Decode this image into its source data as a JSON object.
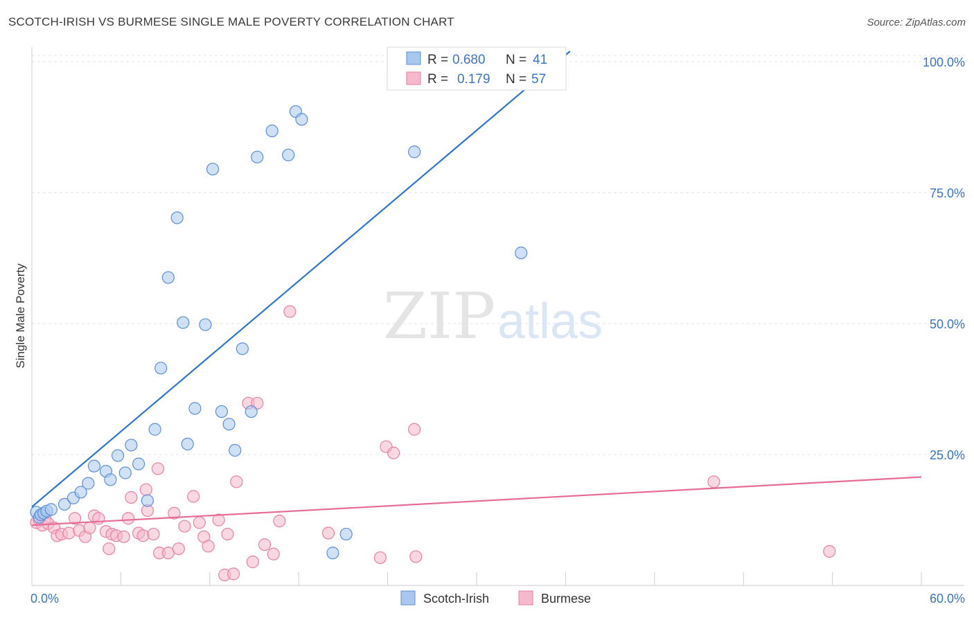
{
  "header": {
    "title": "SCOTCH-IRISH VS BURMESE SINGLE MALE POVERTY CORRELATION CHART",
    "source": "Source: ZipAtlas.com"
  },
  "watermark": {
    "zip": "ZIP",
    "atlas": "atlas"
  },
  "colors": {
    "blue_fill": "#a9c8ef",
    "blue_stroke": "#5b8fd6",
    "blue_line": "#2f74d0",
    "pink_fill": "#f6b8cb",
    "pink_stroke": "#e582a4",
    "pink_line": "#e66b97",
    "grid": "#dde1e8",
    "axis_text": "#3b73c5"
  },
  "legend": {
    "rows": [
      {
        "r_label": "R =",
        "r_value": "0.680",
        "n_label": "N =",
        "n_value": "41",
        "series": "scotch_irish"
      },
      {
        "r_label": "R =",
        "r_value": "0.179",
        "n_label": "N =",
        "n_value": "57",
        "series": "burmese"
      }
    ]
  },
  "chart_data": {
    "type": "scatter",
    "title": "SCOTCH-IRISH VS BURMESE SINGLE MALE POVERTY CORRELATION CHART",
    "xlabel": "",
    "ylabel": "Single Male Poverty",
    "xlim": [
      0,
      60
    ],
    "ylim": [
      0,
      102
    ],
    "x_tick_labels": [
      "0.0%",
      "60.0%"
    ],
    "y_ticks": [
      {
        "value": 25,
        "label": "25.0%"
      },
      {
        "value": 50,
        "label": "50.0%"
      },
      {
        "value": 75,
        "label": "75.0%"
      },
      {
        "value": 100,
        "label": "100.0%"
      }
    ],
    "grid": true,
    "legend_position": "top-center",
    "series": [
      {
        "name": "Scotch-Irish",
        "color": "#a9c8ef",
        "trend": {
          "x": [
            0,
            36.3
          ],
          "y": [
            15.0,
            102.0
          ]
        },
        "points": [
          [
            0.3,
            14.0
          ],
          [
            0.5,
            13.0
          ],
          [
            0.6,
            13.5
          ],
          [
            0.8,
            13.8
          ],
          [
            1.0,
            14.2
          ],
          [
            1.3,
            14.5
          ],
          [
            2.2,
            15.5
          ],
          [
            2.8,
            16.7
          ],
          [
            3.3,
            17.8
          ],
          [
            3.8,
            19.5
          ],
          [
            4.2,
            22.8
          ],
          [
            5.0,
            21.8
          ],
          [
            5.3,
            20.2
          ],
          [
            5.8,
            24.8
          ],
          [
            6.3,
            21.5
          ],
          [
            6.7,
            26.8
          ],
          [
            7.2,
            23.2
          ],
          [
            7.8,
            16.2
          ],
          [
            8.3,
            29.8
          ],
          [
            8.7,
            41.5
          ],
          [
            9.2,
            58.8
          ],
          [
            9.8,
            70.2
          ],
          [
            10.2,
            50.2
          ],
          [
            10.5,
            27.0
          ],
          [
            11.0,
            33.8
          ],
          [
            11.7,
            49.8
          ],
          [
            12.2,
            79.5
          ],
          [
            12.8,
            33.2
          ],
          [
            13.3,
            30.8
          ],
          [
            13.7,
            25.8
          ],
          [
            14.2,
            45.2
          ],
          [
            14.8,
            33.2
          ],
          [
            15.2,
            81.8
          ],
          [
            16.2,
            86.8
          ],
          [
            17.3,
            82.2
          ],
          [
            17.8,
            90.5
          ],
          [
            18.2,
            89.0
          ],
          [
            20.3,
            6.2
          ],
          [
            21.2,
            9.8
          ],
          [
            25.8,
            82.8
          ],
          [
            33.0,
            63.5
          ]
        ]
      },
      {
        "name": "Burmese",
        "color": "#f6b8cb",
        "trend": {
          "x": [
            0,
            60
          ],
          "y": [
            11.5,
            20.7
          ]
        },
        "points": [
          [
            0.3,
            12.0
          ],
          [
            0.5,
            12.5
          ],
          [
            0.7,
            11.5
          ],
          [
            0.9,
            12.8
          ],
          [
            1.1,
            11.8
          ],
          [
            1.5,
            11.0
          ],
          [
            1.7,
            9.5
          ],
          [
            2.0,
            9.8
          ],
          [
            2.5,
            10.0
          ],
          [
            2.9,
            12.8
          ],
          [
            3.2,
            10.5
          ],
          [
            3.6,
            9.3
          ],
          [
            3.9,
            11.0
          ],
          [
            4.2,
            13.3
          ],
          [
            4.5,
            12.8
          ],
          [
            5.0,
            10.3
          ],
          [
            5.2,
            7.0
          ],
          [
            5.4,
            9.8
          ],
          [
            5.7,
            9.5
          ],
          [
            6.2,
            9.3
          ],
          [
            6.5,
            12.8
          ],
          [
            6.7,
            16.8
          ],
          [
            7.2,
            10.0
          ],
          [
            7.5,
            9.5
          ],
          [
            7.7,
            18.3
          ],
          [
            7.8,
            14.3
          ],
          [
            8.2,
            9.8
          ],
          [
            8.5,
            22.3
          ],
          [
            8.6,
            6.2
          ],
          [
            9.2,
            6.2
          ],
          [
            9.6,
            13.8
          ],
          [
            9.9,
            7.0
          ],
          [
            10.3,
            11.3
          ],
          [
            10.9,
            17.0
          ],
          [
            11.3,
            12.0
          ],
          [
            11.6,
            9.3
          ],
          [
            11.9,
            7.5
          ],
          [
            12.6,
            12.5
          ],
          [
            13.0,
            2.0
          ],
          [
            13.2,
            9.8
          ],
          [
            13.6,
            2.2
          ],
          [
            13.8,
            19.8
          ],
          [
            14.6,
            34.8
          ],
          [
            14.9,
            4.5
          ],
          [
            15.2,
            34.8
          ],
          [
            15.7,
            7.8
          ],
          [
            16.3,
            6.0
          ],
          [
            16.7,
            12.3
          ],
          [
            17.4,
            52.3
          ],
          [
            20.0,
            10.0
          ],
          [
            23.5,
            5.3
          ],
          [
            23.9,
            26.5
          ],
          [
            24.4,
            25.3
          ],
          [
            25.8,
            29.8
          ],
          [
            25.9,
            5.5
          ],
          [
            46.0,
            19.8
          ],
          [
            53.8,
            6.5
          ]
        ]
      }
    ]
  },
  "bottom_legend": {
    "items": [
      {
        "label": "Scotch-Irish",
        "series": "scotch_irish"
      },
      {
        "label": "Burmese",
        "series": "burmese"
      }
    ]
  }
}
